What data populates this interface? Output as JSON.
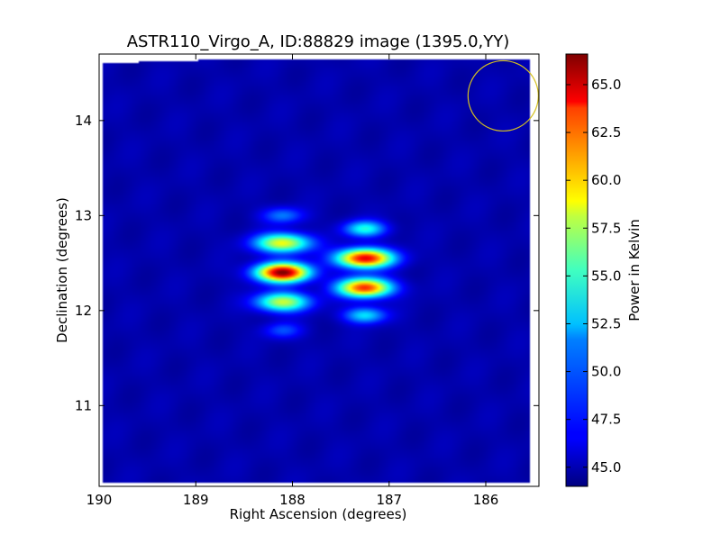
{
  "chart_data": {
    "type": "heatmap",
    "title": "ASTR110_Virgo_A, ID:88829 image (1395.0,YY)",
    "xlabel": "Right Ascension (degrees)",
    "ylabel": "Declination (degrees)",
    "xlim": [
      190.0,
      185.45
    ],
    "ylim": [
      10.15,
      14.7
    ],
    "x_ticks": [
      190,
      189,
      188,
      187,
      186
    ],
    "y_ticks": [
      11,
      12,
      13,
      14
    ],
    "colorbar": {
      "label": "Power in Kelvin",
      "colormap": "jet",
      "range": [
        44.0,
        66.6
      ],
      "ticks": [
        "45.0",
        "47.5",
        "50.0",
        "52.5",
        "55.0",
        "57.5",
        "60.0",
        "62.5",
        "65.0"
      ],
      "tick_values": [
        45.0,
        47.5,
        50.0,
        52.5,
        55.0,
        57.5,
        60.0,
        62.5,
        65.0
      ]
    },
    "background_level": 45.0,
    "sources": [
      {
        "ra": 188.1,
        "dec": 12.4,
        "peak": 66.5,
        "width_ra": 0.38,
        "width_dec": 0.07
      },
      {
        "ra": 188.1,
        "dec": 12.71,
        "peak": 58.0,
        "width_ra": 0.4,
        "width_dec": 0.07
      },
      {
        "ra": 188.1,
        "dec": 12.09,
        "peak": 57.0,
        "width_ra": 0.38,
        "width_dec": 0.07
      },
      {
        "ra": 188.1,
        "dec": 13.0,
        "peak": 49.5,
        "width_ra": 0.3,
        "width_dec": 0.06
      },
      {
        "ra": 188.1,
        "dec": 11.79,
        "peak": 48.5,
        "width_ra": 0.28,
        "width_dec": 0.06
      },
      {
        "ra": 187.25,
        "dec": 12.55,
        "peak": 64.5,
        "width_ra": 0.4,
        "width_dec": 0.07
      },
      {
        "ra": 187.25,
        "dec": 12.24,
        "peak": 63.0,
        "width_ra": 0.38,
        "width_dec": 0.07
      },
      {
        "ra": 187.25,
        "dec": 12.86,
        "peak": 53.0,
        "width_ra": 0.3,
        "width_dec": 0.06
      },
      {
        "ra": 187.25,
        "dec": 11.95,
        "peak": 52.0,
        "width_ra": 0.3,
        "width_dec": 0.06
      }
    ],
    "beam_circle": {
      "ra": 185.82,
      "dec": 14.26,
      "color": "#d4c020"
    },
    "grid": false
  }
}
